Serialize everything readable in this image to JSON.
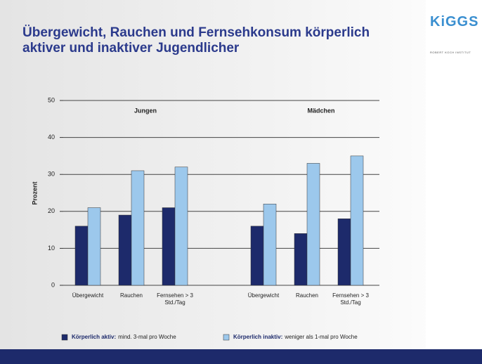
{
  "title": "Übergewicht, Rauchen und Fernsehkonsum körperlich aktiver und inaktiver Jugendlicher",
  "logo": "KiGGS",
  "institute": "ROBERT KOCH INSTITUT",
  "chart_data": {
    "type": "bar",
    "ylabel": "Prozent",
    "groups": [
      "Jungen",
      "Mädchen"
    ],
    "categories": [
      "Übergewicht",
      "Rauchen",
      "Fernsehen > 3 Std./Tag",
      "Übergewicht",
      "Rauchen",
      "Fernsehen > 3 Std./Tag"
    ],
    "series": [
      {
        "name": "Körperlich aktiv:",
        "color": "#1d2a6b",
        "values": [
          16,
          19,
          21,
          16,
          14,
          18
        ]
      },
      {
        "name": "Körperlich inaktiv:",
        "color": "#9cc8ec",
        "values": [
          21,
          31,
          32,
          22,
          33,
          35
        ]
      }
    ],
    "legend_descriptions": [
      "mind. 3-mal pro Woche",
      "weniger als 1-mal pro Woche"
    ],
    "ylim": [
      0,
      50
    ],
    "yticks": [
      0,
      10,
      20,
      30,
      40,
      50
    ],
    "grid": true
  }
}
